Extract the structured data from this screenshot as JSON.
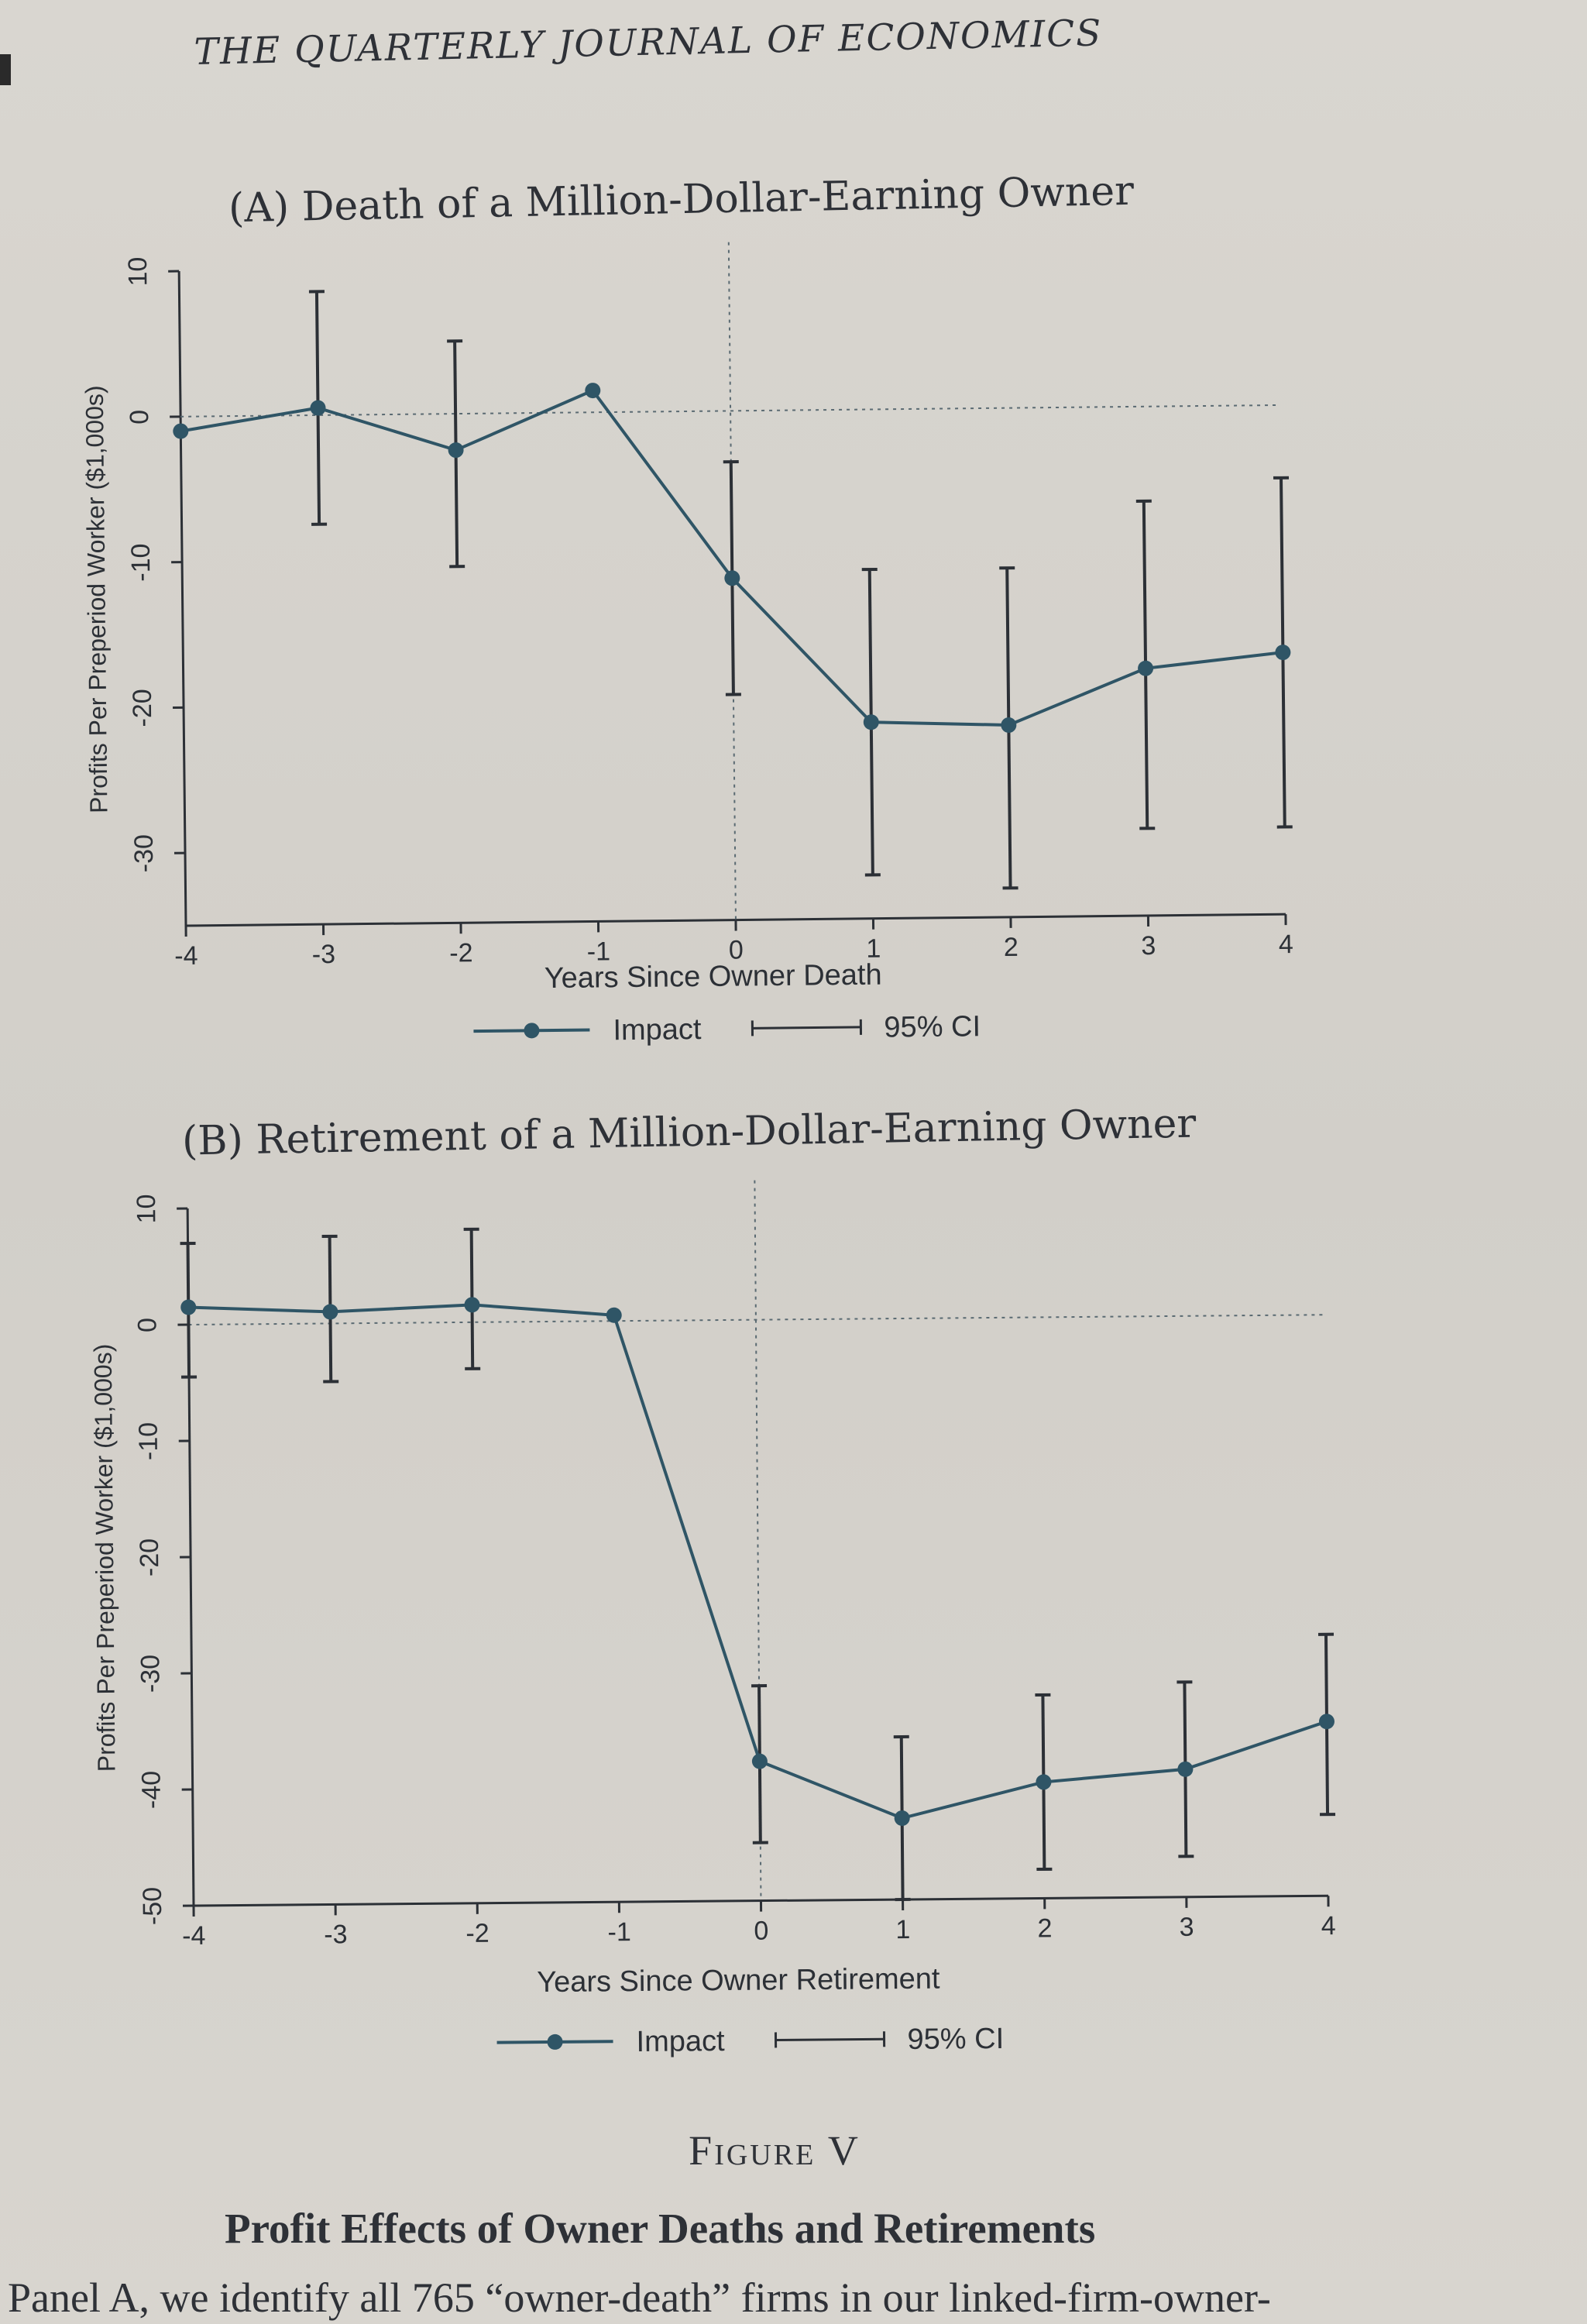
{
  "header": {
    "journal": "THE QUARTERLY JOURNAL OF ECONOMICS"
  },
  "figure": {
    "label": "Figure V",
    "caption": "Profit Effects of Owner Deaths and Retirements",
    "body_text": "Panel A, we identify all 765 “owner-death” firms in our linked-firm-owner-"
  },
  "legend": {
    "impact": "Impact",
    "ci": "95% CI"
  },
  "chart_data": [
    {
      "type": "line",
      "title": "(A) Death of a Million-Dollar-Earning Owner",
      "xlabel": "Years Since Owner Death",
      "ylabel": "Profits Per Preperiod Worker ($1,000s)",
      "x": [
        -4,
        -3,
        -2,
        -1,
        0,
        1,
        2,
        3,
        4
      ],
      "xlim": [
        -4,
        4
      ],
      "ylim": [
        -35,
        10
      ],
      "yticks": [
        10,
        0,
        -10,
        -20,
        -30
      ],
      "series": [
        {
          "name": "Impact",
          "values": [
            -1,
            0.5,
            -2.5,
            1.5,
            -11.5,
            -21.5,
            -21.8,
            -18,
            -17
          ],
          "ci_low": [
            -1,
            -7.5,
            -10.5,
            1.5,
            -19.5,
            -32,
            -33,
            -29,
            -29
          ],
          "ci_high": [
            -1,
            8.5,
            5,
            1.5,
            -3.5,
            -11,
            -11,
            -6.5,
            -5
          ]
        }
      ],
      "reference_lines": {
        "x": 0,
        "y": 0
      }
    },
    {
      "type": "line",
      "title": "(B) Retirement of a Million-Dollar-Earning Owner",
      "xlabel": "Years Since Owner Retirement",
      "ylabel": "Profits Per Preperiod Worker ($1,000s)",
      "x": [
        -4,
        -3,
        -2,
        -1,
        0,
        1,
        2,
        3,
        4
      ],
      "xlim": [
        -4,
        4
      ],
      "ylim": [
        -50,
        10
      ],
      "yticks": [
        10,
        0,
        -10,
        -20,
        -30,
        -40,
        -50
      ],
      "series": [
        {
          "name": "Impact",
          "values": [
            1.5,
            1,
            1.5,
            0.5,
            -38,
            -43,
            -40,
            -39,
            -35
          ],
          "ci_low": [
            -4.5,
            -5,
            -4,
            0.5,
            -45,
            -50,
            -47.5,
            -46.5,
            -43
          ],
          "ci_high": [
            7,
            7.5,
            8,
            0.5,
            -31.5,
            -36,
            -32.5,
            -31.5,
            -27.5
          ]
        }
      ],
      "reference_lines": {
        "x": 0,
        "y": 0
      }
    }
  ]
}
